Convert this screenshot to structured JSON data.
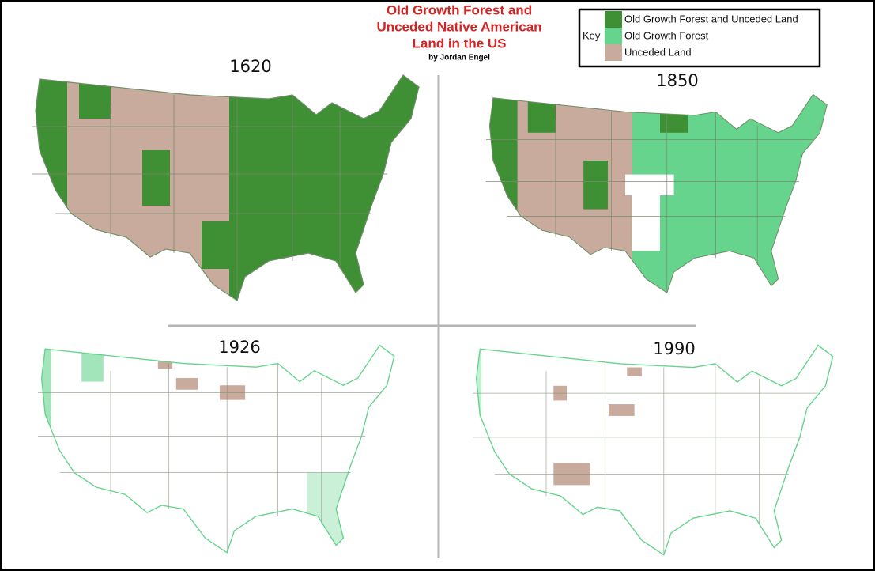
{
  "title": {
    "lines": [
      "Old Growth Forest and",
      "Unceded Native American",
      "Land in the US"
    ],
    "byline": "by Jordan Engel"
  },
  "legend": {
    "label": "Key",
    "items": [
      {
        "label": "Old Growth Forest and Unceded Land",
        "color": "#3f8f34"
      },
      {
        "label": "Old Growth Forest",
        "color": "#66d48c"
      },
      {
        "label": "Unceded Land",
        "color": "#c9ab9d"
      }
    ]
  },
  "maps": [
    {
      "year": "1620"
    },
    {
      "year": "1850"
    },
    {
      "year": "1926"
    },
    {
      "year": "1990"
    }
  ]
}
